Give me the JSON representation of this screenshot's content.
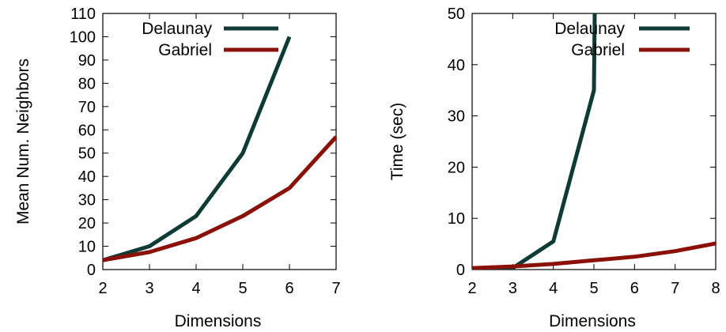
{
  "chart_data": [
    {
      "type": "line",
      "title": "",
      "xlabel": "Dimensions",
      "ylabel": "Mean Num. Neighbors",
      "xlim": [
        2,
        7
      ],
      "ylim": [
        0,
        110
      ],
      "xticks": [
        2,
        3,
        4,
        5,
        6,
        7
      ],
      "yticks": [
        0,
        10,
        20,
        30,
        40,
        50,
        60,
        70,
        80,
        90,
        100,
        110
      ],
      "grid": false,
      "legend_position": "top-right",
      "series": [
        {
          "name": "Delaunay",
          "color": "#0f3b36",
          "x": [
            2,
            3,
            4,
            5,
            6
          ],
          "y": [
            4,
            10,
            23,
            50,
            100
          ]
        },
        {
          "name": "Gabriel",
          "color": "#8b1008",
          "x": [
            2,
            3,
            4,
            5,
            6,
            7
          ],
          "y": [
            4,
            7.5,
            13.5,
            23,
            35,
            57
          ]
        }
      ]
    },
    {
      "type": "line",
      "title": "",
      "xlabel": "Dimensions",
      "ylabel": "Time (sec)",
      "xlim": [
        2,
        8
      ],
      "ylim": [
        0,
        50
      ],
      "xticks": [
        2,
        3,
        4,
        5,
        6,
        7,
        8
      ],
      "yticks": [
        0,
        10,
        20,
        30,
        40,
        50
      ],
      "grid": false,
      "legend_position": "top-right",
      "series": [
        {
          "name": "Delaunay",
          "color": "#0f3b36",
          "x": [
            2,
            3,
            4,
            5,
            5.02
          ],
          "y": [
            0,
            0.3,
            5.5,
            35,
            50
          ]
        },
        {
          "name": "Gabriel",
          "color": "#8b1008",
          "x": [
            2,
            3,
            4,
            5,
            6,
            7,
            8
          ],
          "y": [
            0.3,
            0.6,
            1.1,
            1.8,
            2.5,
            3.6,
            5.1
          ]
        }
      ]
    }
  ]
}
